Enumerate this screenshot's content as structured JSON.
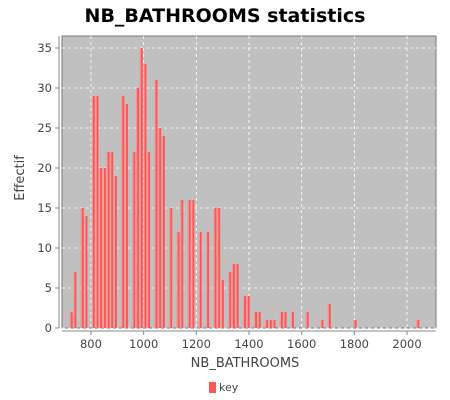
{
  "chart_data": {
    "type": "bar",
    "title": "NB_BATHROOMS statistics",
    "xlabel": "NB_BATHROOMS",
    "ylabel": "Effectif",
    "legend": [
      "key"
    ],
    "legend_position": "bottom",
    "grid": true,
    "xlim": [
      690,
      2110
    ],
    "ylim": [
      0,
      36.5
    ],
    "x_ticks": [
      800,
      1000,
      1200,
      1400,
      1600,
      1800,
      2000
    ],
    "y_ticks": [
      0,
      5,
      10,
      15,
      20,
      25,
      30,
      35
    ],
    "bin_width": 14,
    "x": [
      725,
      739,
      753,
      767,
      781,
      795,
      809,
      823,
      837,
      851,
      865,
      879,
      893,
      907,
      921,
      935,
      949,
      963,
      977,
      991,
      1005,
      1019,
      1033,
      1047,
      1061,
      1075,
      1089,
      1103,
      1117,
      1131,
      1145,
      1159,
      1173,
      1187,
      1201,
      1215,
      1229,
      1243,
      1257,
      1271,
      1285,
      1299,
      1313,
      1327,
      1341,
      1355,
      1369,
      1383,
      1397,
      1411,
      1425,
      1439,
      1453,
      1467,
      1481,
      1495,
      1509,
      1523,
      1537,
      1551,
      1565,
      1579,
      1593,
      1607,
      1621,
      1635,
      1649,
      1663,
      1677,
      1691,
      1705,
      1719,
      1733,
      1747,
      1761,
      1775,
      1789,
      1803,
      1817,
      1831,
      1845,
      1859,
      1873,
      1887,
      1901,
      1915,
      1929,
      1943,
      1957,
      1971,
      1985,
      1999,
      2013,
      2027,
      2041,
      2055,
      2069
    ],
    "values": [
      2,
      7,
      0,
      15,
      14,
      0,
      29,
      29,
      20,
      20,
      22,
      22,
      19,
      0,
      29,
      28,
      0,
      22,
      30,
      35,
      33,
      22,
      0,
      31,
      25,
      24,
      0,
      15,
      0,
      12,
      16,
      0,
      16,
      16,
      0,
      12,
      0,
      12,
      0,
      15,
      15,
      6,
      0,
      7,
      8,
      8,
      0,
      4,
      4,
      0,
      2,
      2,
      0,
      1,
      1,
      1,
      0,
      2,
      2,
      0,
      2,
      0,
      0,
      0,
      2,
      0,
      0,
      0,
      1,
      0,
      3,
      0,
      0,
      0,
      0,
      0,
      0,
      1,
      0,
      0,
      0,
      0,
      0,
      0,
      0,
      0,
      0,
      0,
      0,
      0,
      0,
      0,
      0,
      0,
      1,
      0,
      0
    ]
  },
  "colors": {
    "plot_background": "#c0c0c0",
    "bar": "#ff5555",
    "bar_highlight": "#ff9a9a",
    "grid": "#ffffff"
  }
}
